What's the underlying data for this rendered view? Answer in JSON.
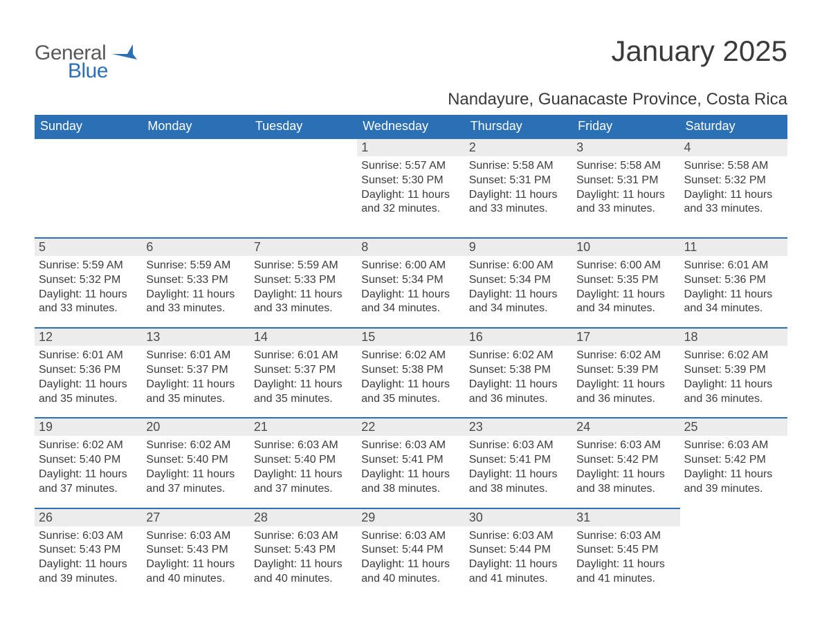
{
  "logo": {
    "text_main": "General",
    "text_accent": "Blue",
    "accent_color": "#2b70b4",
    "main_color": "#5a5a5a"
  },
  "title": "January 2025",
  "location": "Nandayure, Guanacaste Province, Costa Rica",
  "colors": {
    "header_bg": "#2b70b4",
    "header_text": "#ffffff",
    "rule": "#2b70b4",
    "daynum_bg": "#ececec",
    "body_text": "#3a3a3a"
  },
  "weekdays": [
    "Sunday",
    "Monday",
    "Tuesday",
    "Wednesday",
    "Thursday",
    "Friday",
    "Saturday"
  ],
  "weeks": [
    [
      {
        "blank": true
      },
      {
        "blank": true
      },
      {
        "blank": true
      },
      {
        "day": 1,
        "sunrise": "5:57 AM",
        "sunset": "5:30 PM",
        "daylight": "11 hours and 32 minutes."
      },
      {
        "day": 2,
        "sunrise": "5:58 AM",
        "sunset": "5:31 PM",
        "daylight": "11 hours and 33 minutes."
      },
      {
        "day": 3,
        "sunrise": "5:58 AM",
        "sunset": "5:31 PM",
        "daylight": "11 hours and 33 minutes."
      },
      {
        "day": 4,
        "sunrise": "5:58 AM",
        "sunset": "5:32 PM",
        "daylight": "11 hours and 33 minutes."
      }
    ],
    [
      {
        "day": 5,
        "sunrise": "5:59 AM",
        "sunset": "5:32 PM",
        "daylight": "11 hours and 33 minutes."
      },
      {
        "day": 6,
        "sunrise": "5:59 AM",
        "sunset": "5:33 PM",
        "daylight": "11 hours and 33 minutes."
      },
      {
        "day": 7,
        "sunrise": "5:59 AM",
        "sunset": "5:33 PM",
        "daylight": "11 hours and 33 minutes."
      },
      {
        "day": 8,
        "sunrise": "6:00 AM",
        "sunset": "5:34 PM",
        "daylight": "11 hours and 34 minutes."
      },
      {
        "day": 9,
        "sunrise": "6:00 AM",
        "sunset": "5:34 PM",
        "daylight": "11 hours and 34 minutes."
      },
      {
        "day": 10,
        "sunrise": "6:00 AM",
        "sunset": "5:35 PM",
        "daylight": "11 hours and 34 minutes."
      },
      {
        "day": 11,
        "sunrise": "6:01 AM",
        "sunset": "5:36 PM",
        "daylight": "11 hours and 34 minutes."
      }
    ],
    [
      {
        "day": 12,
        "sunrise": "6:01 AM",
        "sunset": "5:36 PM",
        "daylight": "11 hours and 35 minutes."
      },
      {
        "day": 13,
        "sunrise": "6:01 AM",
        "sunset": "5:37 PM",
        "daylight": "11 hours and 35 minutes."
      },
      {
        "day": 14,
        "sunrise": "6:01 AM",
        "sunset": "5:37 PM",
        "daylight": "11 hours and 35 minutes."
      },
      {
        "day": 15,
        "sunrise": "6:02 AM",
        "sunset": "5:38 PM",
        "daylight": "11 hours and 35 minutes."
      },
      {
        "day": 16,
        "sunrise": "6:02 AM",
        "sunset": "5:38 PM",
        "daylight": "11 hours and 36 minutes."
      },
      {
        "day": 17,
        "sunrise": "6:02 AM",
        "sunset": "5:39 PM",
        "daylight": "11 hours and 36 minutes."
      },
      {
        "day": 18,
        "sunrise": "6:02 AM",
        "sunset": "5:39 PM",
        "daylight": "11 hours and 36 minutes."
      }
    ],
    [
      {
        "day": 19,
        "sunrise": "6:02 AM",
        "sunset": "5:40 PM",
        "daylight": "11 hours and 37 minutes."
      },
      {
        "day": 20,
        "sunrise": "6:02 AM",
        "sunset": "5:40 PM",
        "daylight": "11 hours and 37 minutes."
      },
      {
        "day": 21,
        "sunrise": "6:03 AM",
        "sunset": "5:40 PM",
        "daylight": "11 hours and 37 minutes."
      },
      {
        "day": 22,
        "sunrise": "6:03 AM",
        "sunset": "5:41 PM",
        "daylight": "11 hours and 38 minutes."
      },
      {
        "day": 23,
        "sunrise": "6:03 AM",
        "sunset": "5:41 PM",
        "daylight": "11 hours and 38 minutes."
      },
      {
        "day": 24,
        "sunrise": "6:03 AM",
        "sunset": "5:42 PM",
        "daylight": "11 hours and 38 minutes."
      },
      {
        "day": 25,
        "sunrise": "6:03 AM",
        "sunset": "5:42 PM",
        "daylight": "11 hours and 39 minutes."
      }
    ],
    [
      {
        "day": 26,
        "sunrise": "6:03 AM",
        "sunset": "5:43 PM",
        "daylight": "11 hours and 39 minutes."
      },
      {
        "day": 27,
        "sunrise": "6:03 AM",
        "sunset": "5:43 PM",
        "daylight": "11 hours and 40 minutes."
      },
      {
        "day": 28,
        "sunrise": "6:03 AM",
        "sunset": "5:43 PM",
        "daylight": "11 hours and 40 minutes."
      },
      {
        "day": 29,
        "sunrise": "6:03 AM",
        "sunset": "5:44 PM",
        "daylight": "11 hours and 40 minutes."
      },
      {
        "day": 30,
        "sunrise": "6:03 AM",
        "sunset": "5:44 PM",
        "daylight": "11 hours and 41 minutes."
      },
      {
        "day": 31,
        "sunrise": "6:03 AM",
        "sunset": "5:45 PM",
        "daylight": "11 hours and 41 minutes."
      },
      {
        "blank_trailing": true
      }
    ]
  ],
  "labels": {
    "sunrise": "Sunrise:",
    "sunset": "Sunset:",
    "daylight": "Daylight:"
  }
}
